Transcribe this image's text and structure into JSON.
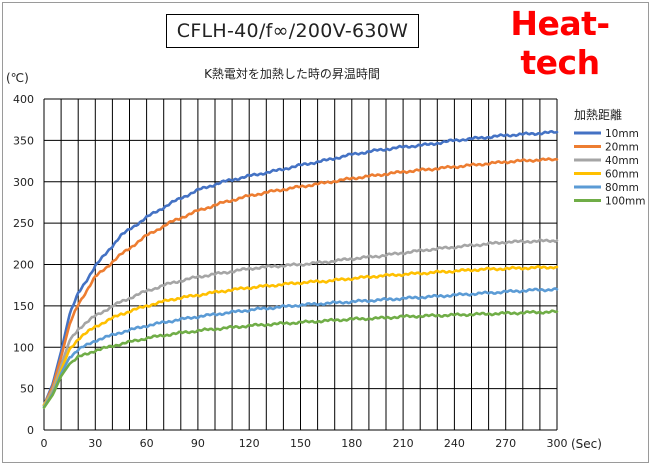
{
  "header": {
    "model": "CFLH-40/f∞/200V-630W",
    "brand": "Heat-tech"
  },
  "chart_data": {
    "type": "line",
    "title": "K熱電対を加熱した時の昇温時間",
    "ylabel": "(℃)",
    "xlabel": "(Sec)",
    "xlim": [
      0,
      300
    ],
    "ylim": [
      0,
      400
    ],
    "x_ticks": [
      "0",
      "30",
      "60",
      "90",
      "120",
      "150",
      "180",
      "210",
      "240",
      "270",
      "300"
    ],
    "y_ticks": [
      "0",
      "50",
      "100",
      "150",
      "200",
      "250",
      "300",
      "350",
      "400"
    ],
    "grid": true,
    "legend_title": "加熱距離",
    "legend_position": "right",
    "x": [
      0,
      5,
      10,
      15,
      20,
      30,
      45,
      60,
      75,
      90,
      105,
      120,
      135,
      150,
      165,
      180,
      195,
      210,
      225,
      240,
      255,
      270,
      285,
      300
    ],
    "series": [
      {
        "name": "10mm",
        "color": "#4472c4",
        "values": [
          30,
          55,
          95,
          140,
          165,
          198,
          235,
          257,
          275,
          290,
          300,
          307,
          313,
          320,
          326,
          333,
          338,
          342,
          345,
          350,
          353,
          356,
          358,
          360
        ]
      },
      {
        "name": "20mm",
        "color": "#ed7d31",
        "values": [
          30,
          52,
          88,
          128,
          152,
          185,
          212,
          235,
          252,
          265,
          275,
          283,
          289,
          294,
          299,
          304,
          308,
          312,
          315,
          318,
          321,
          324,
          326,
          327
        ]
      },
      {
        "name": "40mm",
        "color": "#a5a5a5",
        "values": [
          30,
          48,
          78,
          108,
          122,
          138,
          155,
          168,
          178,
          185,
          190,
          195,
          198,
          200,
          203,
          207,
          210,
          214,
          218,
          221,
          224,
          227,
          228,
          229
        ]
      },
      {
        "name": "60mm",
        "color": "#ffc000",
        "values": [
          30,
          45,
          72,
          98,
          110,
          125,
          140,
          150,
          158,
          163,
          168,
          172,
          175,
          178,
          180,
          183,
          186,
          188,
          190,
          192,
          194,
          195,
          196,
          197
        ]
      },
      {
        "name": "80mm",
        "color": "#5b9bd5",
        "values": [
          28,
          44,
          68,
          88,
          97,
          108,
          118,
          126,
          132,
          137,
          141,
          145,
          148,
          151,
          153,
          155,
          157,
          159,
          161,
          163,
          165,
          167,
          169,
          170
        ]
      },
      {
        "name": "100mm",
        "color": "#70ad47",
        "values": [
          27,
          42,
          65,
          80,
          88,
          96,
          104,
          111,
          116,
          120,
          123,
          126,
          128,
          130,
          132,
          134,
          135,
          137,
          138,
          139,
          140,
          141,
          142,
          143
        ]
      }
    ]
  }
}
